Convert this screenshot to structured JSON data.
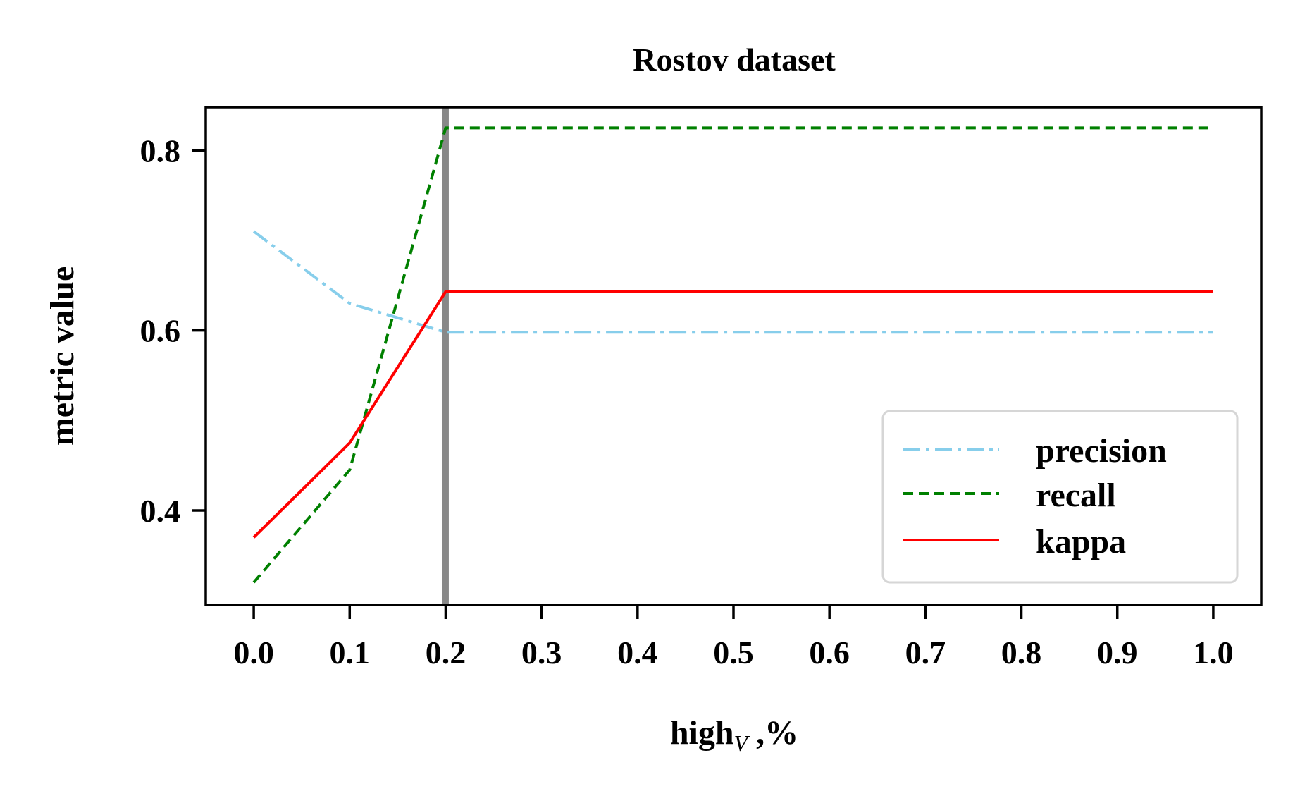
{
  "chart_data": {
    "type": "line",
    "title": "Rostov dataset",
    "xlabel": "high",
    "xlabel_subscript": "V",
    "xlabel_suffix": " ,%",
    "ylabel": "metric value",
    "x": [
      0.0,
      0.1,
      0.2,
      0.3,
      0.4,
      0.5,
      0.6,
      0.7,
      0.8,
      0.9,
      1.0
    ],
    "xlim": [
      -0.05,
      1.05
    ],
    "ylim": [
      0.295,
      0.848
    ],
    "xticks": [
      "0.0",
      "0.1",
      "0.2",
      "0.3",
      "0.4",
      "0.5",
      "0.6",
      "0.7",
      "0.8",
      "0.9",
      "1.0"
    ],
    "yticks": [
      0.4,
      0.6,
      0.8
    ],
    "ytick_labels": [
      "0.4",
      "0.6",
      "0.8"
    ],
    "vline_x": 0.2,
    "grid": false,
    "legend_position": "lower-right",
    "series": [
      {
        "name": "precision",
        "color": "#87ceeb",
        "style": "dashdot",
        "values": [
          0.71,
          0.63,
          0.598,
          0.598,
          0.598,
          0.598,
          0.598,
          0.598,
          0.598,
          0.598,
          0.598
        ]
      },
      {
        "name": "recall",
        "color": "#008000",
        "style": "dashed",
        "values": [
          0.32,
          0.445,
          0.825,
          0.825,
          0.825,
          0.825,
          0.825,
          0.825,
          0.825,
          0.825,
          0.825
        ]
      },
      {
        "name": "kappa",
        "color": "#ff0000",
        "style": "solid",
        "values": [
          0.37,
          0.475,
          0.643,
          0.643,
          0.643,
          0.643,
          0.643,
          0.643,
          0.643,
          0.643,
          0.643
        ]
      }
    ]
  }
}
